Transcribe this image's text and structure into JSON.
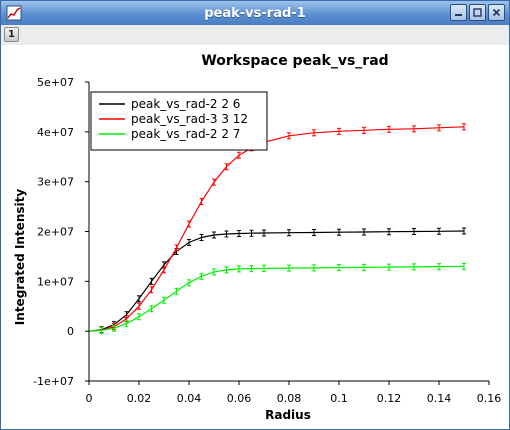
{
  "window": {
    "title": "peak-vs-rad-1",
    "controls": [
      "minimize-icon",
      "restore-icon",
      "close-icon"
    ]
  },
  "toolbar": {
    "tab_label": "1"
  },
  "chart_data": {
    "type": "line",
    "title": "Workspace peak_vs_rad",
    "xlabel": "Radius",
    "ylabel": "Integrated Intensity",
    "xlim": [
      0,
      0.16
    ],
    "ylim": [
      -10000000,
      50000000
    ],
    "xticks": [
      "0",
      "0.02",
      "0.04",
      "0.06",
      "0.08",
      "0.1",
      "0.12",
      "0.14",
      "0.16"
    ],
    "yticks": [
      "-1e+07",
      "0",
      "1e+07",
      "2e+07",
      "3e+07",
      "4e+07",
      "5e+07"
    ],
    "grid": false,
    "legend_position": "top-left",
    "x": [
      0,
      0.005,
      0.01,
      0.015,
      0.02,
      0.025,
      0.03,
      0.035,
      0.04,
      0.045,
      0.05,
      0.055,
      0.06,
      0.065,
      0.07,
      0.08,
      0.09,
      0.1,
      0.11,
      0.12,
      0.13,
      0.14,
      0.15
    ],
    "series": [
      {
        "name": "peak_vs_rad-2 2 6",
        "color": "#000000",
        "values": [
          0,
          300000,
          1300000,
          3300000,
          6500000,
          10000000,
          13300000,
          16000000,
          17800000,
          18800000,
          19300000,
          19500000,
          19600000,
          19650000,
          19700000,
          19750000,
          19800000,
          19850000,
          19900000,
          19950000,
          20000000,
          20050000,
          20100000
        ]
      },
      {
        "name": "peak_vs_rad-3 3 12",
        "color": "#ff0000",
        "values": [
          0,
          200000,
          900000,
          2500000,
          5000000,
          8300000,
          12300000,
          16700000,
          21500000,
          26000000,
          29900000,
          33000000,
          35300000,
          36800000,
          37900000,
          39200000,
          39800000,
          40100000,
          40300000,
          40500000,
          40600000,
          40800000,
          41000000
        ]
      },
      {
        "name": "peak_vs_rad-2 2 7",
        "color": "#00ee00",
        "values": [
          0,
          150000,
          600000,
          1500000,
          2900000,
          4500000,
          6200000,
          8000000,
          9700000,
          11000000,
          11900000,
          12300000,
          12500000,
          12550000,
          12600000,
          12650000,
          12700000,
          12750000,
          12800000,
          12850000,
          12900000,
          12950000,
          13000000
        ]
      }
    ]
  }
}
